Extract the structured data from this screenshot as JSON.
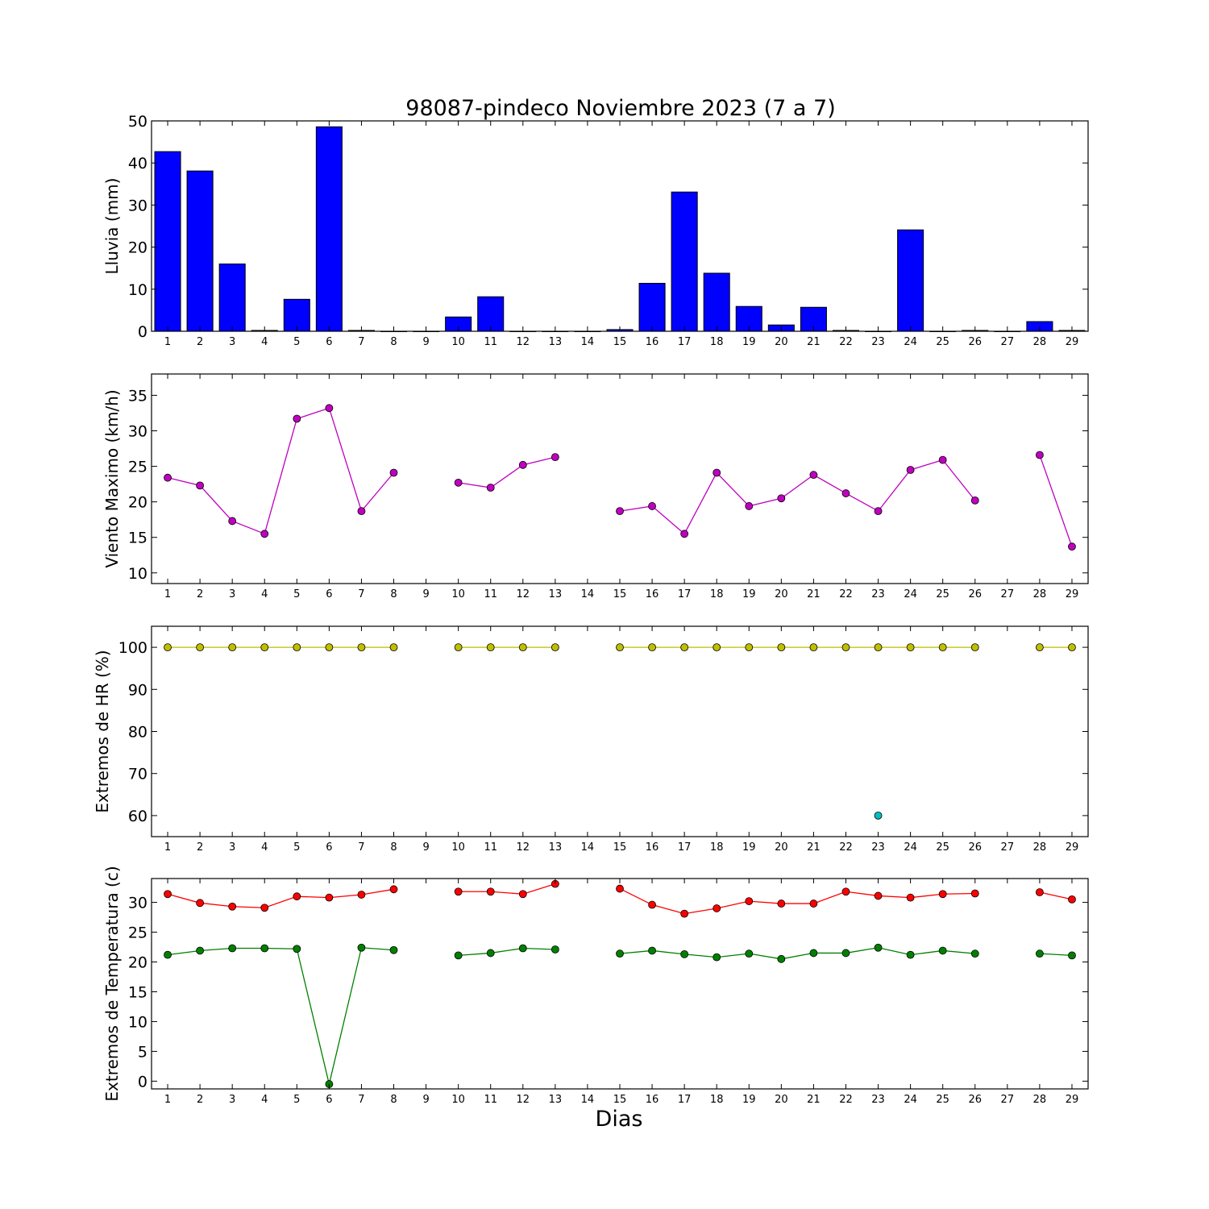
{
  "figure": {
    "title": "98087-pindeco Noviembre 2023  (7 a 7)",
    "xlabel": "Dias"
  },
  "colors": {
    "rain_bar": "#0000ff",
    "wind": "#bf00bf",
    "hr_max": "#bfbf00",
    "hr_min": "#00bfbf",
    "temp_max": "#ff0000",
    "temp_min": "#008000"
  },
  "chart_data": [
    {
      "type": "bar",
      "ylabel": "Lluvia (mm)",
      "ylim": [
        0,
        50
      ],
      "yticks": [
        0,
        10,
        20,
        30,
        40,
        50
      ],
      "x": [
        1,
        2,
        3,
        4,
        5,
        6,
        7,
        8,
        9,
        10,
        11,
        12,
        13,
        14,
        15,
        16,
        17,
        18,
        19,
        20,
        21,
        22,
        23,
        24,
        25,
        26,
        27,
        28,
        29
      ],
      "series": [
        {
          "values": [
            42.7,
            38.1,
            16.0,
            0.2,
            7.6,
            48.6,
            0.2,
            0,
            0,
            3.4,
            8.2,
            0,
            0,
            0,
            0.4,
            11.4,
            33.1,
            13.8,
            5.9,
            1.5,
            5.7,
            0.2,
            0,
            24.1,
            0,
            0.2,
            0,
            2.3,
            0.2
          ]
        }
      ]
    },
    {
      "type": "line",
      "ylabel": "Viento Maximo (km/h)",
      "ylim": [
        8.5,
        38
      ],
      "yticks": [
        10,
        15,
        20,
        25,
        30,
        35
      ],
      "x": [
        1,
        2,
        3,
        4,
        5,
        6,
        7,
        8,
        9,
        10,
        11,
        12,
        13,
        14,
        15,
        16,
        17,
        18,
        19,
        20,
        21,
        22,
        23,
        24,
        25,
        26,
        27,
        28,
        29
      ],
      "series": [
        {
          "values": [
            23.4,
            22.3,
            17.3,
            15.5,
            31.7,
            33.2,
            18.7,
            24.1,
            null,
            22.7,
            22.0,
            25.2,
            26.3,
            null,
            18.7,
            19.4,
            15.5,
            24.1,
            19.4,
            20.5,
            23.8,
            21.2,
            18.7,
            24.5,
            25.9,
            20.2,
            null,
            26.6,
            13.7
          ]
        }
      ]
    },
    {
      "type": "line",
      "ylabel": "Extremos de HR (%)",
      "ylim": [
        55,
        105
      ],
      "yticks": [
        60,
        70,
        80,
        90,
        100
      ],
      "x": [
        1,
        2,
        3,
        4,
        5,
        6,
        7,
        8,
        9,
        10,
        11,
        12,
        13,
        14,
        15,
        16,
        17,
        18,
        19,
        20,
        21,
        22,
        23,
        24,
        25,
        26,
        27,
        28,
        29
      ],
      "series": [
        {
          "values": [
            100,
            100,
            100,
            100,
            100,
            100,
            100,
            100,
            null,
            100,
            100,
            100,
            100,
            null,
            100,
            100,
            100,
            100,
            100,
            100,
            100,
            100,
            100,
            100,
            100,
            100,
            null,
            100,
            100
          ]
        },
        {
          "values": [
            null,
            null,
            null,
            null,
            null,
            null,
            null,
            null,
            null,
            null,
            null,
            null,
            null,
            null,
            null,
            null,
            null,
            null,
            null,
            null,
            null,
            null,
            60,
            null,
            null,
            null,
            null,
            null,
            null
          ]
        }
      ]
    },
    {
      "type": "line",
      "ylabel": "Extremos de Temperatura (c)",
      "ylim": [
        -1.3,
        34
      ],
      "yticks": [
        0,
        5,
        10,
        15,
        20,
        25,
        30
      ],
      "x": [
        1,
        2,
        3,
        4,
        5,
        6,
        7,
        8,
        9,
        10,
        11,
        12,
        13,
        14,
        15,
        16,
        17,
        18,
        19,
        20,
        21,
        22,
        23,
        24,
        25,
        26,
        27,
        28,
        29
      ],
      "series": [
        {
          "values": [
            31.4,
            29.9,
            29.3,
            29.1,
            31.0,
            30.8,
            31.3,
            32.2,
            null,
            31.8,
            31.8,
            31.4,
            33.1,
            null,
            32.3,
            29.6,
            28.1,
            29.0,
            30.2,
            29.8,
            29.8,
            31.8,
            31.1,
            30.8,
            31.4,
            31.5,
            null,
            31.7,
            30.5
          ]
        },
        {
          "values": [
            21.2,
            21.9,
            22.3,
            22.3,
            22.2,
            -0.5,
            22.4,
            22.0,
            null,
            21.1,
            21.5,
            22.3,
            22.1,
            null,
            21.4,
            21.9,
            21.3,
            20.8,
            21.4,
            20.5,
            21.5,
            21.5,
            22.4,
            21.2,
            21.9,
            21.4,
            null,
            21.4,
            21.1
          ]
        }
      ]
    }
  ]
}
